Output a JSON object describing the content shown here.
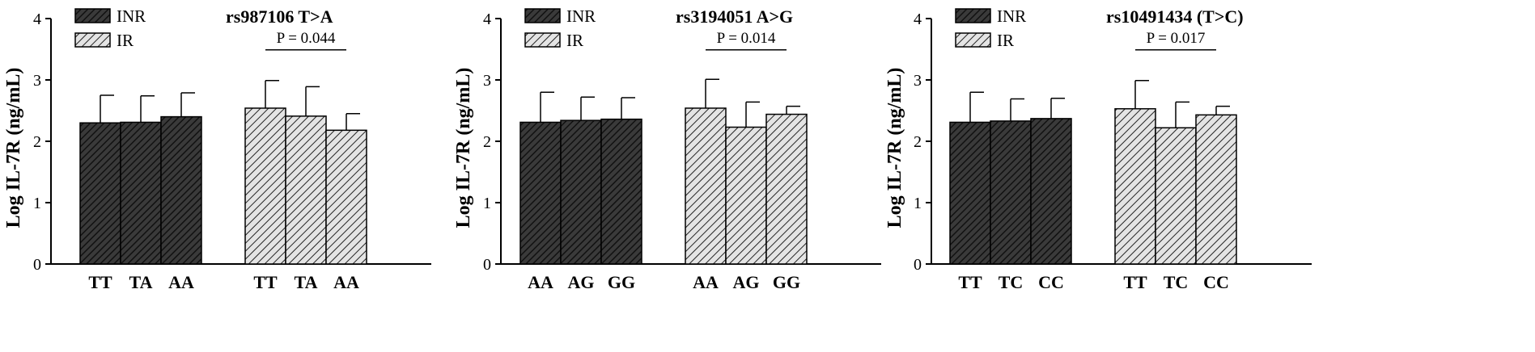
{
  "y_axis_label": "Log  IL-7R  (ng/mL)",
  "legend": {
    "inr": "INR",
    "ir": "IR"
  },
  "colors": {
    "inr_fill": "#3a3a3a",
    "ir_fill": "#d8d8d8",
    "hatch": "#111111"
  },
  "chart_data": [
    {
      "type": "bar",
      "title": "rs987106 T>A",
      "ylabel": "Log  IL-7R  (ng/mL)",
      "ylim": [
        0,
        4
      ],
      "yticks": [
        "0",
        "1",
        "2",
        "3",
        "4"
      ],
      "groups": [
        {
          "name": "INR",
          "categories": [
            "TT",
            "TA",
            "AA"
          ],
          "values": [
            2.3,
            2.31,
            2.4
          ],
          "errors": [
            0.45,
            0.43,
            0.39
          ]
        },
        {
          "name": "IR",
          "categories": [
            "TT",
            "TA",
            "AA"
          ],
          "values": [
            2.54,
            2.41,
            2.18
          ],
          "errors": [
            0.45,
            0.48,
            0.27
          ]
        }
      ],
      "annotation": {
        "text": "P = 0.044",
        "from": 0,
        "to": 2
      }
    },
    {
      "type": "bar",
      "title": "rs3194051 A>G",
      "ylabel": "Log  IL-7R  (ng/mL)",
      "ylim": [
        0,
        4
      ],
      "yticks": [
        "0",
        "1",
        "2",
        "3",
        "4"
      ],
      "groups": [
        {
          "name": "INR",
          "categories": [
            "AA",
            "AG",
            "GG"
          ],
          "values": [
            2.31,
            2.34,
            2.36
          ],
          "errors": [
            0.49,
            0.38,
            0.35
          ]
        },
        {
          "name": "IR",
          "categories": [
            "AA",
            "AG",
            "GG"
          ],
          "values": [
            2.54,
            2.23,
            2.44
          ],
          "errors": [
            0.47,
            0.41,
            0.13
          ]
        }
      ],
      "annotation": {
        "text": "P = 0.014",
        "from": 0,
        "to": 2
      }
    },
    {
      "type": "bar",
      "title": "rs10491434 (T>C)",
      "ylabel": "Log  IL-7R  (ng/mL)",
      "ylim": [
        0,
        4
      ],
      "yticks": [
        "0",
        "1",
        "2",
        "3",
        "4"
      ],
      "groups": [
        {
          "name": "INR",
          "categories": [
            "TT",
            "TC",
            "CC"
          ],
          "values": [
            2.31,
            2.33,
            2.37
          ],
          "errors": [
            0.49,
            0.36,
            0.33
          ]
        },
        {
          "name": "IR",
          "categories": [
            "TT",
            "TC",
            "CC"
          ],
          "values": [
            2.53,
            2.22,
            2.43
          ],
          "errors": [
            0.46,
            0.42,
            0.14
          ]
        }
      ],
      "annotation": {
        "text": "P = 0.017",
        "from": 0,
        "to": 2
      }
    }
  ]
}
